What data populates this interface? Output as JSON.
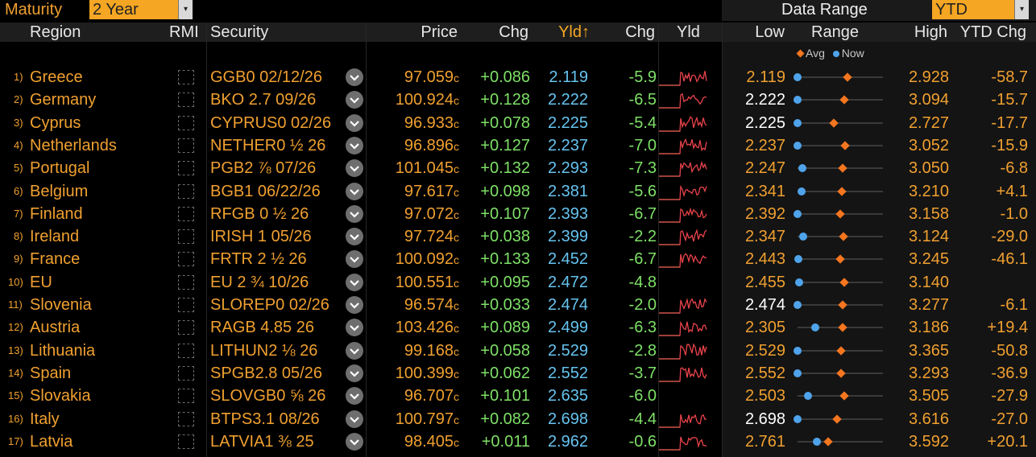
{
  "top": {
    "maturity_label": "Maturity",
    "maturity_value": "2 Year",
    "data_range_label": "Data Range",
    "data_range_value": "YTD",
    "dropdown_arrow": "▾"
  },
  "columns": {
    "region": "Region",
    "rmi": "RMI",
    "security": "Security",
    "price": "Price",
    "chg": "Chg",
    "yld": "Yld↑",
    "ychg": "Chg",
    "yld_spark": "Yld",
    "low": "Low",
    "range": "Range",
    "high": "High",
    "ytd_chg": "YTD Chg"
  },
  "legend": {
    "avg": "Avg",
    "now": "Now"
  },
  "colors": {
    "accent": "#f5a623",
    "positive": "#7ee067",
    "yield": "#66c3ef",
    "avg_marker": "#f5761f",
    "now_marker": "#4fa3ea",
    "spark": "#e8434b"
  },
  "rows": [
    {
      "num": "1)",
      "region": "Greece",
      "security": "GGB0 02/12/26",
      "price": "97.059",
      "price_suffix": "c",
      "chg": "+0.086",
      "yld": "2.119",
      "ychg": "-5.9",
      "spark": true,
      "low": "2.119",
      "low_white": false,
      "high": "2.928",
      "ytd": "-58.7",
      "now": 2.119,
      "avg": 2.62
    },
    {
      "num": "2)",
      "region": "Germany",
      "security": "BKO 2.7 09/26",
      "price": "100.924",
      "price_suffix": "c",
      "chg": "+0.128",
      "yld": "2.222",
      "ychg": "-6.5",
      "spark": true,
      "low": "2.222",
      "low_white": true,
      "high": "3.094",
      "ytd": "-15.7",
      "now": 2.222,
      "avg": 2.73
    },
    {
      "num": "3)",
      "region": "Cyprus",
      "security": "CYPRUS0 02/26",
      "price": "96.933",
      "price_suffix": "c",
      "chg": "+0.078",
      "yld": "2.225",
      "ychg": "-5.4",
      "spark": true,
      "low": "2.225",
      "low_white": true,
      "high": "2.727",
      "ytd": "-17.7",
      "now": 2.225,
      "avg": 2.45
    },
    {
      "num": "4)",
      "region": "Netherlands",
      "security": "NETHER0 ½ 26",
      "price": "96.896",
      "price_suffix": "c",
      "chg": "+0.127",
      "yld": "2.237",
      "ychg": "-7.0",
      "spark": true,
      "low": "2.237",
      "low_white": false,
      "high": "3.052",
      "ytd": "-15.9",
      "now": 2.237,
      "avg": 2.72
    },
    {
      "num": "5)",
      "region": "Portugal",
      "security": "PGB2 ⅞ 07/26",
      "price": "101.045",
      "price_suffix": "c",
      "chg": "+0.132",
      "yld": "2.293",
      "ychg": "-7.3",
      "spark": true,
      "low": "2.247",
      "low_white": false,
      "high": "3.050",
      "ytd": "-6.8",
      "now": 2.293,
      "avg": 2.7
    },
    {
      "num": "6)",
      "region": "Belgium",
      "security": "BGB1 06/22/26",
      "price": "97.617",
      "price_suffix": "c",
      "chg": "+0.098",
      "yld": "2.381",
      "ychg": "-5.6",
      "spark": true,
      "low": "2.341",
      "low_white": false,
      "high": "3.210",
      "ytd": "+4.1",
      "now": 2.381,
      "avg": 2.82
    },
    {
      "num": "7)",
      "region": "Finland",
      "security": "RFGB 0 ½ 26",
      "price": "97.072",
      "price_suffix": "c",
      "chg": "+0.107",
      "yld": "2.393",
      "ychg": "-6.7",
      "spark": true,
      "low": "2.392",
      "low_white": false,
      "high": "3.158",
      "ytd": "-1.0",
      "now": 2.393,
      "avg": 2.8
    },
    {
      "num": "8)",
      "region": "Ireland",
      "security": "IRISH 1 05/26",
      "price": "97.724",
      "price_suffix": "c",
      "chg": "+0.038",
      "yld": "2.399",
      "ychg": "-2.2",
      "spark": true,
      "low": "2.347",
      "low_white": false,
      "high": "3.124",
      "ytd": "-29.0",
      "now": 2.399,
      "avg": 2.79
    },
    {
      "num": "9)",
      "region": "France",
      "security": "FRTR 2 ½ 26",
      "price": "100.092",
      "price_suffix": "c",
      "chg": "+0.133",
      "yld": "2.452",
      "ychg": "-6.7",
      "spark": true,
      "low": "2.443",
      "low_white": false,
      "high": "3.245",
      "ytd": "-46.1",
      "now": 2.452,
      "avg": 2.87
    },
    {
      "num": "10)",
      "region": "EU",
      "security": "EU 2 ¾ 10/26",
      "price": "100.551",
      "price_suffix": "c",
      "chg": "+0.095",
      "yld": "2.472",
      "ychg": "-4.8",
      "spark": false,
      "low": "2.455",
      "low_white": false,
      "high": "3.140",
      "ytd": "",
      "now": 2.472,
      "avg": 2.85
    },
    {
      "num": "11)",
      "region": "Slovenia",
      "security": "SLOREP0 02/26",
      "price": "96.574",
      "price_suffix": "c",
      "chg": "+0.033",
      "yld": "2.474",
      "ychg": "-2.0",
      "spark": true,
      "low": "2.474",
      "low_white": true,
      "high": "3.277",
      "ytd": "-6.1",
      "now": 2.474,
      "avg": 2.92
    },
    {
      "num": "12)",
      "region": "Austria",
      "security": "RAGB 4.85 26",
      "price": "103.426",
      "price_suffix": "c",
      "chg": "+0.089",
      "yld": "2.499",
      "ychg": "-6.3",
      "spark": true,
      "low": "2.305",
      "low_white": false,
      "high": "3.186",
      "ytd": "+19.4",
      "now": 2.499,
      "avg": 2.8
    },
    {
      "num": "13)",
      "region": "Lithuania",
      "security": "LITHUN2 ⅛ 26",
      "price": "99.168",
      "price_suffix": "c",
      "chg": "+0.058",
      "yld": "2.529",
      "ychg": "-2.8",
      "spark": true,
      "low": "2.529",
      "low_white": false,
      "high": "3.365",
      "ytd": "-50.8",
      "now": 2.529,
      "avg": 2.98
    },
    {
      "num": "14)",
      "region": "Spain",
      "security": "SPGB2.8 05/26",
      "price": "100.399",
      "price_suffix": "c",
      "chg": "+0.062",
      "yld": "2.552",
      "ychg": "-3.7",
      "spark": true,
      "low": "2.552",
      "low_white": false,
      "high": "3.293",
      "ytd": "-36.9",
      "now": 2.552,
      "avg": 2.95
    },
    {
      "num": "15)",
      "region": "Slovakia",
      "security": "SLOVGB0 ⅝ 26",
      "price": "96.707",
      "price_suffix": "c",
      "chg": "+0.101",
      "yld": "2.635",
      "ychg": "-6.0",
      "spark": false,
      "low": "2.503",
      "low_white": false,
      "high": "3.505",
      "ytd": "-27.9",
      "now": 2.635,
      "avg": 3.08
    },
    {
      "num": "16)",
      "region": "Italy",
      "security": "BTPS3.1 08/26",
      "price": "100.797",
      "price_suffix": "c",
      "chg": "+0.082",
      "yld": "2.698",
      "ychg": "-4.4",
      "spark": true,
      "low": "2.698",
      "low_white": true,
      "high": "3.616",
      "ytd": "-27.0",
      "now": 2.698,
      "avg": 3.15
    },
    {
      "num": "17)",
      "region": "Latvia",
      "security": "LATVIA1 ⅜ 25",
      "price": "98.405",
      "price_suffix": "c",
      "chg": "+0.011",
      "yld": "2.962",
      "ychg": "-0.6",
      "spark": true,
      "low": "2.761",
      "low_white": false,
      "high": "3.592",
      "ytd": "+20.1",
      "now": 2.962,
      "avg": 3.08
    }
  ]
}
